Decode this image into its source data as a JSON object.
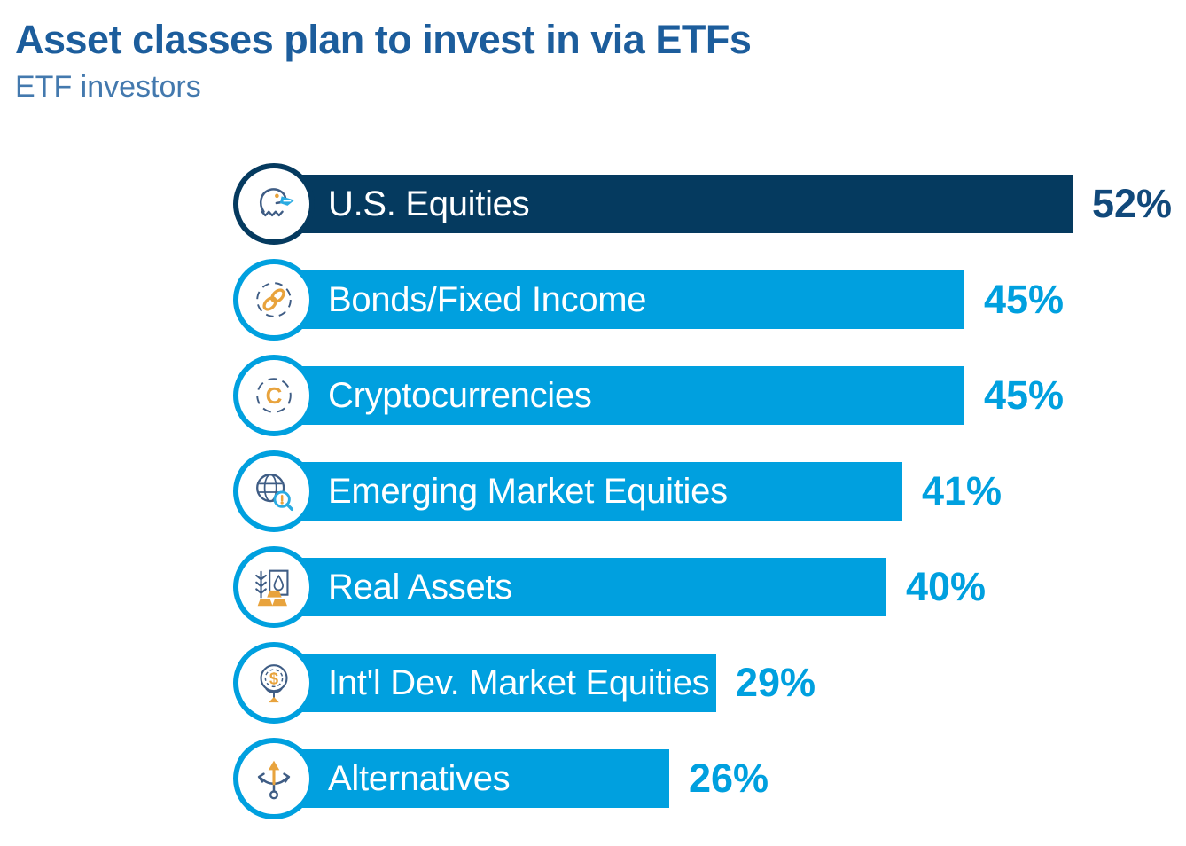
{
  "page": {
    "title": "Asset classes plan to invest in via ETFs",
    "subtitle": "ETF investors"
  },
  "colors": {
    "title_text": "#1c5d9c",
    "subtitle_text": "#4379ae",
    "bar_light_blue": "#00a0df",
    "bar_dark_navy": "#053a5f",
    "value_label_light": "#00a0df",
    "value_label_dark": "#11497b",
    "bar_text": "#ffffff",
    "icon_slate": "#3f5d85",
    "icon_gold": "#e8a33d",
    "icon_sky": "#29abe2"
  },
  "chart_data": {
    "type": "bar",
    "orientation": "horizontal",
    "title": "Asset classes plan to invest in via ETFs",
    "subtitle": "ETF investors",
    "unit": "%",
    "xlim": [
      0,
      60
    ],
    "grid": false,
    "legend": false,
    "value_labels_position": "right-of-bar",
    "categories": [
      "U.S. Equities",
      "Bonds/Fixed Income",
      "Cryptocurrencies",
      "Emerging Market Equities",
      "Real Assets",
      "Int'l Dev. Market Equities",
      "Alternatives"
    ],
    "values": [
      52,
      45,
      45,
      41,
      40,
      29,
      26
    ],
    "bars": [
      {
        "label": "U.S. Equities",
        "value": 52,
        "value_label": "52%",
        "icon": "eagle-icon",
        "bar_color": "#053a5f",
        "ring_color": "#053a5f",
        "value_color": "#11497b"
      },
      {
        "label": "Bonds/Fixed Income",
        "value": 45,
        "value_label": "45%",
        "icon": "chain-link-icon",
        "bar_color": "#00a0df",
        "ring_color": "#00a0df",
        "value_color": "#00a0df"
      },
      {
        "label": "Cryptocurrencies",
        "value": 45,
        "value_label": "45%",
        "icon": "crypto-coin-icon",
        "bar_color": "#00a0df",
        "ring_color": "#00a0df",
        "value_color": "#00a0df"
      },
      {
        "label": "Emerging Market Equities",
        "value": 41,
        "value_label": "41%",
        "icon": "globe-magnifier-icon",
        "bar_color": "#00a0df",
        "ring_color": "#00a0df",
        "value_color": "#00a0df"
      },
      {
        "label": "Real Assets",
        "value": 40,
        "value_label": "40%",
        "icon": "real-assets-icon",
        "bar_color": "#00a0df",
        "ring_color": "#00a0df",
        "value_color": "#00a0df"
      },
      {
        "label": "Int'l Dev. Market Equities",
        "value": 29,
        "value_label": "29%",
        "icon": "globe-stand-icon",
        "bar_color": "#00a0df",
        "ring_color": "#00a0df",
        "value_color": "#00a0df"
      },
      {
        "label": "Alternatives",
        "value": 26,
        "value_label": "26%",
        "icon": "branching-arrows-icon",
        "bar_color": "#00a0df",
        "ring_color": "#00a0df",
        "value_color": "#00a0df"
      }
    ]
  }
}
